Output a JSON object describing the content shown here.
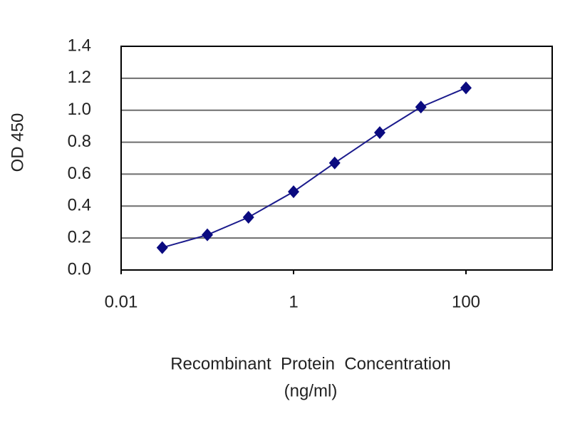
{
  "chart_data": {
    "type": "line",
    "y_label": "OD 450",
    "x_label": [
      "Recombinant  Protein  Concentration",
      "(ng/ml)"
    ],
    "x": [
      0.03,
      0.1,
      0.3,
      1,
      3,
      10,
      30,
      100
    ],
    "series": [
      {
        "color": "#1a1a8c",
        "values": [
          0.14,
          0.22,
          0.33,
          0.49,
          0.67,
          0.86,
          1.02,
          1.14
        ]
      }
    ],
    "xlim": [
      0.01,
      1000
    ],
    "xticks": [
      0.01,
      1,
      100
    ],
    "xlog": true,
    "ylim": [
      0,
      1.4
    ],
    "yticks": [
      {
        "value": 0,
        "label": "0.0"
      },
      0.2,
      0.4,
      0.6,
      0.8,
      {
        "value": 1,
        "label": "1.0"
      },
      1.2,
      1.4
    ],
    "grid": true
  }
}
